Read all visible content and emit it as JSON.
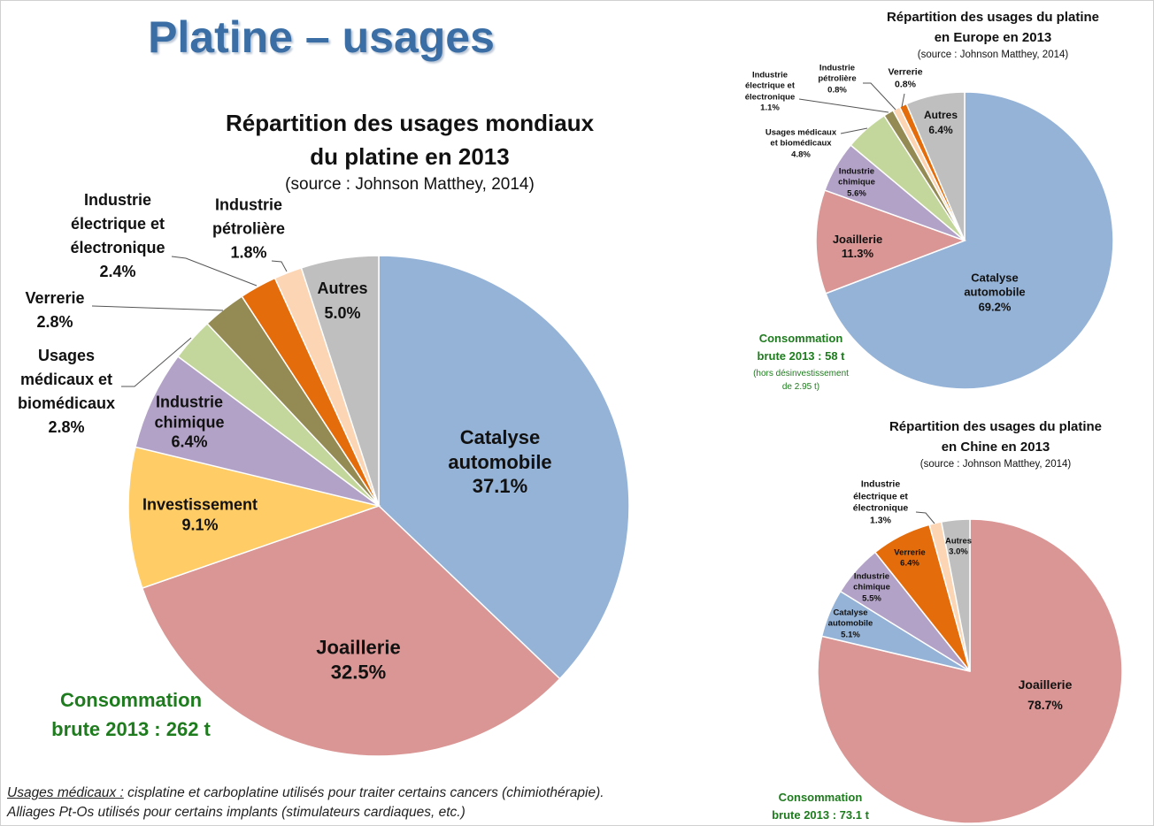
{
  "page_title": "Platine – usages",
  "colors": {
    "catalyse": "#95B3D7",
    "joaillerie": "#D99694",
    "investissement": "#FFCC66",
    "chimique": "#B3A2C7",
    "medicaux": "#C3D69B",
    "verrerie_world": "#948A54",
    "electrique_world": "#E46C0A",
    "petroliere": "#FCD5B5",
    "autres": "#BFBFBF",
    "title": "#3A6EA5",
    "consumption": "#1E7B1E"
  },
  "chart_data": [
    {
      "type": "pie",
      "title": [
        "Répartition des usages mondiaux",
        "du platine en 2013"
      ],
      "subtitle": "(source : Johnson Matthey, 2014)",
      "note": [
        "Consommation",
        "brute 2013 : 262 t"
      ],
      "slices": [
        {
          "label": [
            "Catalyse",
            "automobile"
          ],
          "value": 37.1,
          "value_label": "37.1%",
          "color": "#95B3D7"
        },
        {
          "label": [
            "Joaillerie"
          ],
          "value": 32.5,
          "value_label": "32.5%",
          "color": "#D99694"
        },
        {
          "label": [
            "Investissement"
          ],
          "value": 9.1,
          "value_label": "9.1%",
          "color": "#FFCC66"
        },
        {
          "label": [
            "Industrie",
            "chimique"
          ],
          "value": 6.4,
          "value_label": "6.4%",
          "color": "#B3A2C7"
        },
        {
          "label": [
            "Usages",
            "médicaux et",
            "biomédicaux"
          ],
          "value": 2.8,
          "value_label": "2.8%",
          "color": "#C3D69B"
        },
        {
          "label": [
            "Verrerie"
          ],
          "value": 2.8,
          "value_label": "2.8%",
          "color": "#948A54"
        },
        {
          "label": [
            "Industrie",
            "électrique et",
            "électronique"
          ],
          "value": 2.4,
          "value_label": "2.4%",
          "color": "#E46C0A"
        },
        {
          "label": [
            "Industrie",
            "pétrolière"
          ],
          "value": 1.8,
          "value_label": "1.8%",
          "color": "#FCD5B5"
        },
        {
          "label": [
            "Autres"
          ],
          "value": 5.0,
          "value_label": "5.0%",
          "color": "#BFBFBF"
        }
      ]
    },
    {
      "type": "pie",
      "title": [
        "Répartition des usages du platine",
        "en Europe en 2013"
      ],
      "subtitle": "(source : Johnson Matthey, 2014)",
      "note": [
        "Consommation",
        "brute 2013 : 58 t"
      ],
      "note_small": [
        "(hors désinvestissement",
        "de 2.95 t)"
      ],
      "slices": [
        {
          "label": [
            "Catalyse",
            "automobile"
          ],
          "value": 69.2,
          "value_label": "69.2%",
          "color": "#95B3D7"
        },
        {
          "label": [
            "Joaillerie"
          ],
          "value": 11.3,
          "value_label": "11.3%",
          "color": "#D99694"
        },
        {
          "label": [
            "Industrie",
            "chimique"
          ],
          "value": 5.6,
          "value_label": "5.6%",
          "color": "#B3A2C7"
        },
        {
          "label": [
            "Usages médicaux",
            "et biomédicaux"
          ],
          "value": 4.8,
          "value_label": "4.8%",
          "color": "#C3D69B"
        },
        {
          "label": [
            "Industrie",
            "électrique et",
            "électronique"
          ],
          "value": 1.1,
          "value_label": "1.1%",
          "color": "#948A54"
        },
        {
          "label": [
            "Industrie",
            "pétrolière"
          ],
          "value": 0.8,
          "value_label": "0.8%",
          "color": "#FCD5B5"
        },
        {
          "label": [
            "Verrerie"
          ],
          "value": 0.8,
          "value_label": "0.8%",
          "color": "#E46C0A"
        },
        {
          "label": [
            "Autres"
          ],
          "value": 6.4,
          "value_label": "6.4%",
          "color": "#BFBFBF"
        }
      ]
    },
    {
      "type": "pie",
      "title": [
        "Répartition des usages du platine",
        "en Chine en 2013"
      ],
      "subtitle": "(source : Johnson Matthey, 2014)",
      "note": [
        "Consommation",
        "brute 2013 : 73.1 t"
      ],
      "slices": [
        {
          "label": [
            "Joaillerie"
          ],
          "value": 78.7,
          "value_label": "78.7%",
          "color": "#D99694"
        },
        {
          "label": [
            "Catalyse",
            "automobile"
          ],
          "value": 5.1,
          "value_label": "5.1%",
          "color": "#95B3D7"
        },
        {
          "label": [
            "Industrie",
            "chimique"
          ],
          "value": 5.5,
          "value_label": "5.5%",
          "color": "#B3A2C7"
        },
        {
          "label": [
            "Verrerie"
          ],
          "value": 6.4,
          "value_label": "6.4%",
          "color": "#E46C0A"
        },
        {
          "label": [
            "Industrie",
            "électrique et",
            "électronique"
          ],
          "value": 1.3,
          "value_label": "1.3%",
          "color": "#FCD5B5"
        },
        {
          "label": [
            "Autres"
          ],
          "value": 3.0,
          "value_label": "3.0%",
          "color": "#BFBFBF"
        }
      ]
    }
  ],
  "footnote": {
    "label": "Usages médicaux :",
    "line1": " cisplatine et carboplatine utilisés pour traiter certains cancers (chimiothérapie).",
    "line2": "Alliages Pt-Os utilisés pour certains implants (stimulateurs cardiaques,  etc.)"
  }
}
